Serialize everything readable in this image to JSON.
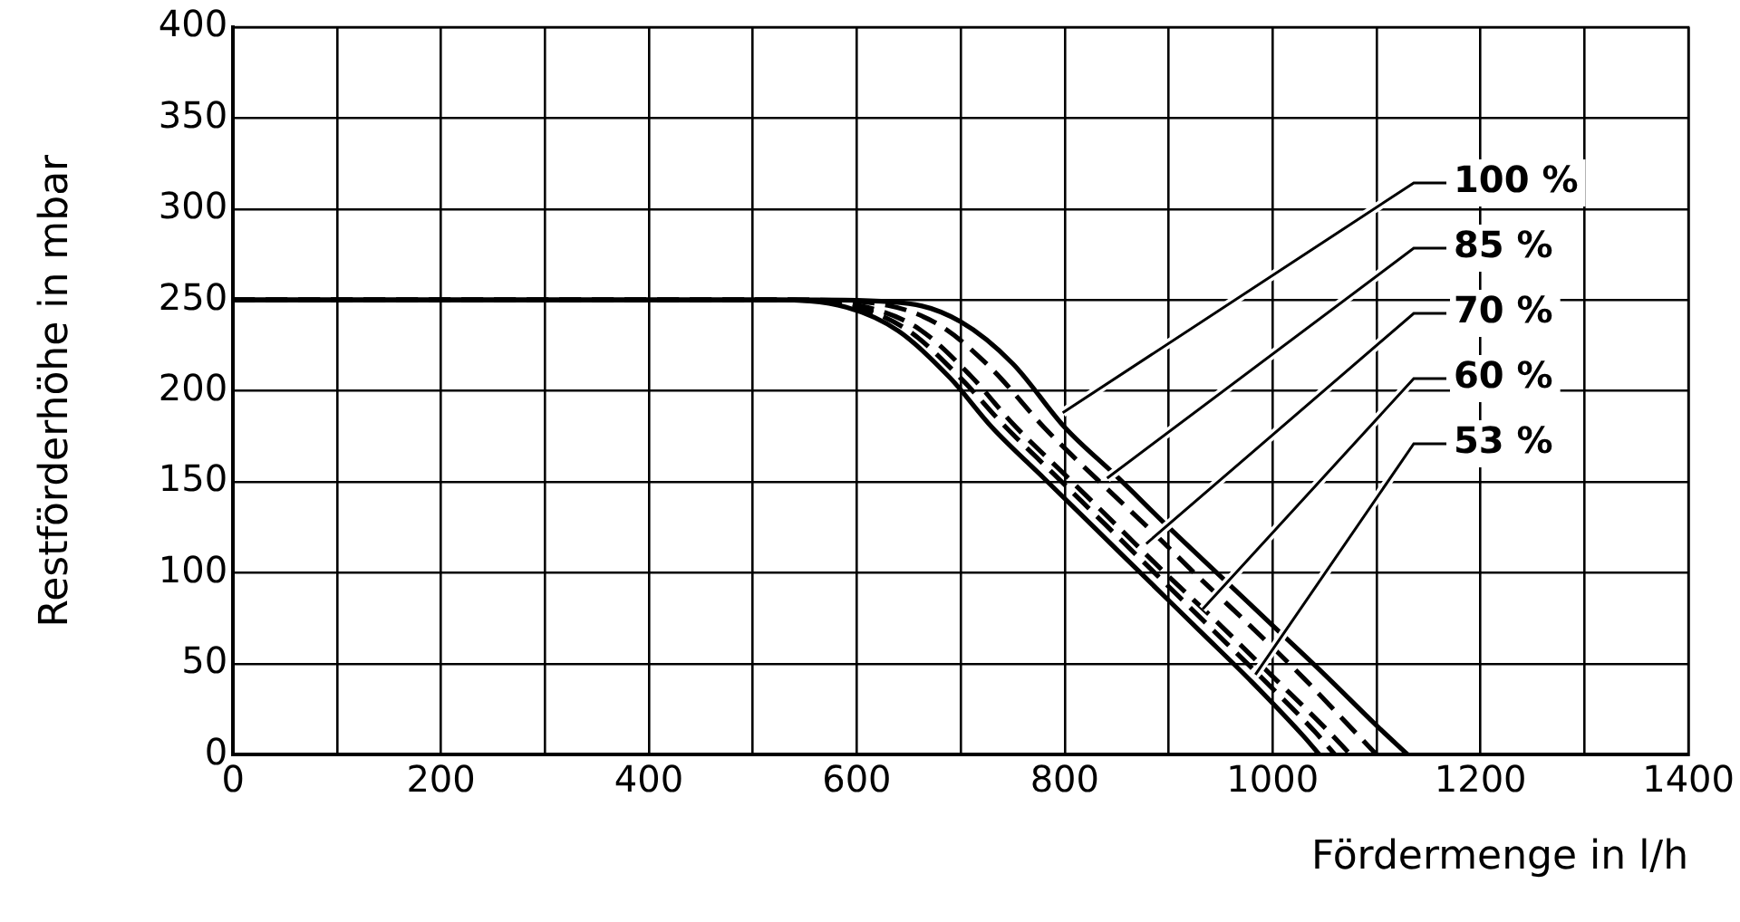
{
  "chart_data": {
    "type": "line",
    "xlabel": "Fördermenge in l/h",
    "ylabel": "Restförderhöhe in mbar",
    "xlim": [
      0,
      1400
    ],
    "xticks": [
      0,
      {
        "value": 100,
        "label": null
      },
      200,
      {
        "value": 300,
        "label": null
      },
      400,
      {
        "value": 500,
        "label": null
      },
      600,
      {
        "value": 700,
        "label": null
      },
      800,
      {
        "value": 900,
        "label": null
      },
      1000,
      {
        "value": 1100,
        "label": null
      },
      1200,
      {
        "value": 1300,
        "label": null
      },
      1400
    ],
    "ylim": [
      0,
      400
    ],
    "yticks": [
      0,
      50,
      100,
      150,
      200,
      250,
      300,
      350,
      400
    ],
    "grid": true,
    "legend": false,
    "marker": "none",
    "series": [
      {
        "name": "100 %",
        "color": "#000000",
        "line_style": "solid",
        "x": [
          0,
          560,
          650,
          700,
          750,
          800,
          850,
          900,
          950,
          1000,
          1050,
          1100,
          1130
        ],
        "values": [
          250,
          250,
          248,
          238,
          215,
          180,
          153,
          125,
          98,
          71,
          44,
          16,
          0
        ]
      },
      {
        "name": "85 %",
        "color": "#000000",
        "line_style": "dashed",
        "x": [
          0,
          550,
          630,
          680,
          730,
          780,
          830,
          880,
          930,
          980,
          1030,
          1080,
          1100
        ],
        "values": [
          250,
          250,
          247,
          236,
          212,
          180,
          152,
          125,
          97,
          70,
          42,
          12,
          0
        ]
      },
      {
        "name": "70 %",
        "color": "#000000",
        "line_style": "dashed",
        "x": [
          0,
          540,
          610,
          660,
          710,
          750,
          800,
          850,
          900,
          950,
          1000,
          1050,
          1075
        ],
        "values": [
          250,
          250,
          246,
          234,
          208,
          182,
          154,
          126,
          98,
          71,
          43,
          15,
          0
        ]
      },
      {
        "name": "60 %",
        "color": "#000000",
        "line_style": "dashed",
        "x": [
          0,
          530,
          600,
          650,
          700,
          740,
          790,
          840,
          890,
          940,
          990,
          1040,
          1060
        ],
        "values": [
          250,
          250,
          246,
          233,
          207,
          182,
          154,
          126,
          98,
          70,
          42,
          13,
          0
        ]
      },
      {
        "name": "53 %",
        "color": "#000000",
        "line_style": "solid",
        "x": [
          0,
          520,
          590,
          640,
          690,
          730,
          780,
          830,
          880,
          930,
          980,
          1030,
          1045
        ],
        "values": [
          250,
          250,
          246,
          233,
          207,
          180,
          152,
          124,
          96,
          68,
          40,
          10,
          0
        ]
      }
    ]
  }
}
